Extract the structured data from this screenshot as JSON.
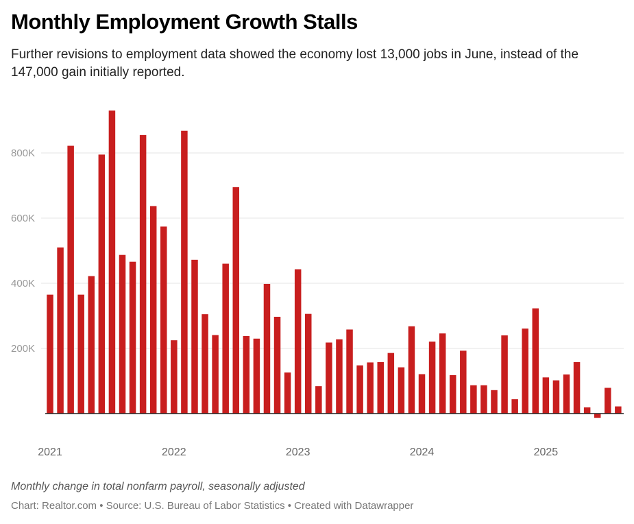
{
  "header": {
    "title": "Monthly Employment Growth Stalls",
    "subtitle": "Further revisions to employment data showed the economy lost 13,000 jobs in June, instead of the 147,000 gain initially reported."
  },
  "footer": {
    "notes": "Monthly change in total nonfarm payroll, seasonally adjusted",
    "credits": "Chart: Realtor.com • Source: U.S. Bureau of Labor Statistics • Created with Datawrapper"
  },
  "colors": {
    "bar": "#c81e1e",
    "grid": "#e6e6e6",
    "baseline": "#222222"
  },
  "chart_data": {
    "type": "bar",
    "title": "Monthly Employment Growth Stalls",
    "xlabel": "",
    "ylabel": "",
    "unit": "jobs (thousands)",
    "ylim": [
      -30,
      950
    ],
    "grid": true,
    "y_ticks": [
      {
        "value": 200,
        "label": "200K"
      },
      {
        "value": 400,
        "label": "400K"
      },
      {
        "value": 600,
        "label": "600K"
      },
      {
        "value": 800,
        "label": "800K"
      }
    ],
    "x_ticks": [
      {
        "index": 0,
        "label": "2021"
      },
      {
        "index": 12,
        "label": "2022"
      },
      {
        "index": 24,
        "label": "2023"
      },
      {
        "index": 36,
        "label": "2024"
      },
      {
        "index": 48,
        "label": "2025"
      }
    ],
    "categories": [
      "2021-01",
      "2021-02",
      "2021-03",
      "2021-04",
      "2021-05",
      "2021-06",
      "2021-07",
      "2021-08",
      "2021-09",
      "2021-10",
      "2021-11",
      "2021-12",
      "2022-01",
      "2022-02",
      "2022-03",
      "2022-04",
      "2022-05",
      "2022-06",
      "2022-07",
      "2022-08",
      "2022-09",
      "2022-10",
      "2022-11",
      "2022-12",
      "2023-01",
      "2023-02",
      "2023-03",
      "2023-04",
      "2023-05",
      "2023-06",
      "2023-07",
      "2023-08",
      "2023-09",
      "2023-10",
      "2023-11",
      "2023-12",
      "2024-01",
      "2024-02",
      "2024-03",
      "2024-04",
      "2024-05",
      "2024-06",
      "2024-07",
      "2024-08",
      "2024-09",
      "2024-10",
      "2024-11",
      "2024-12",
      "2025-01",
      "2025-02",
      "2025-03",
      "2025-04",
      "2025-05",
      "2025-06",
      "2025-07",
      "2025-08"
    ],
    "series": [
      {
        "name": "Monthly change in total nonfarm payroll",
        "values": [
          365,
          510,
          822,
          365,
          422,
          795,
          930,
          487,
          466,
          855,
          637,
          574,
          225,
          868,
          472,
          305,
          241,
          460,
          695,
          238,
          230,
          398,
          297,
          126,
          443,
          306,
          84,
          218,
          228,
          258,
          148,
          157,
          158,
          186,
          142,
          268,
          121,
          221,
          246,
          118,
          193,
          87,
          87,
          72,
          240,
          44,
          261,
          323,
          111,
          102,
          120,
          158,
          19,
          -13,
          79,
          22
        ]
      }
    ]
  }
}
